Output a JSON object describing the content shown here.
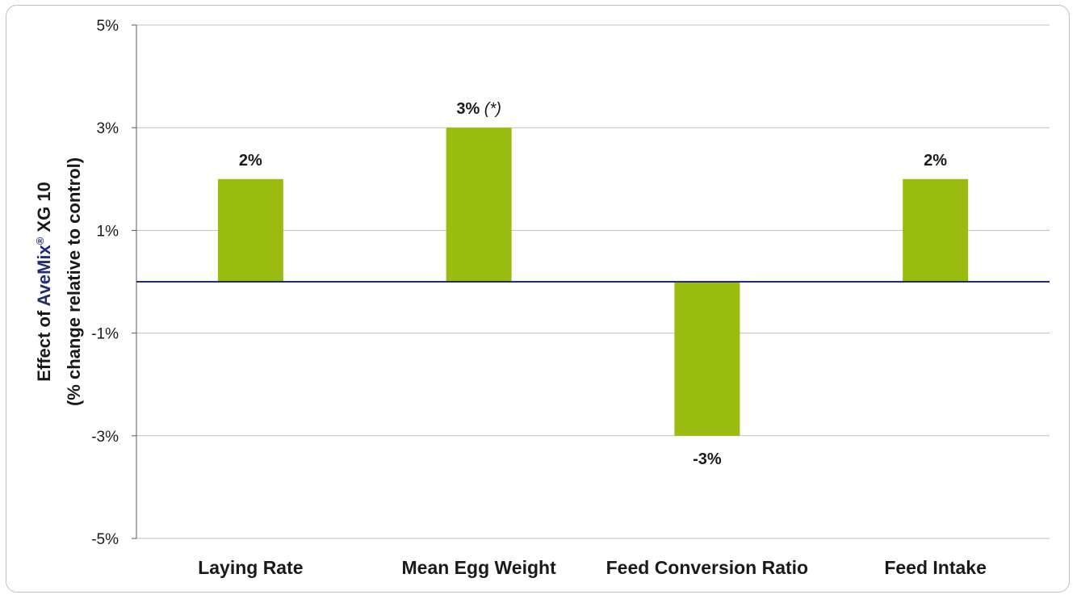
{
  "chart_data": {
    "type": "bar",
    "categories": [
      "Laying Rate",
      "Mean Egg Weight",
      "Feed Conversion Ratio",
      "Feed Intake"
    ],
    "values": [
      2,
      3,
      -3,
      2
    ],
    "data_labels": [
      "2%",
      "3%",
      "-3%",
      "2%"
    ],
    "data_label_notes": [
      "",
      "(*)",
      "",
      ""
    ],
    "yticks": [
      5,
      3,
      1,
      -1,
      -3,
      -5
    ],
    "ytick_labels": [
      "5%",
      "3%",
      "1%",
      "-1%",
      "-3%",
      "-5%"
    ],
    "ylim": [
      -5,
      5
    ],
    "grid": true,
    "ylabel": {
      "prefix": "Effect of ",
      "brand": "AveMix",
      "brand_mark": "®",
      "suffix": " XG 10",
      "line2": "(% change relative to control)"
    },
    "xlabel": "",
    "title": ""
  },
  "colors": {
    "bar": "#9abc10",
    "zero_line": "#1f2e6e",
    "brand": "#1f2e6e",
    "grid": "#bfbfbf",
    "axis": "#595959"
  }
}
